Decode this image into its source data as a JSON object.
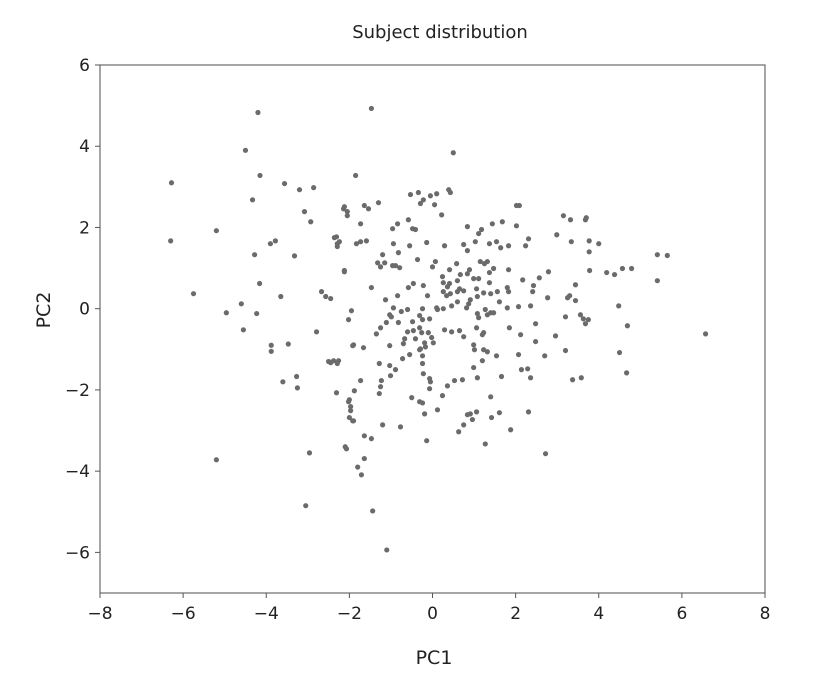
{
  "chart_data": {
    "type": "scatter",
    "title": "Subject distribution",
    "xlabel": "PC1",
    "ylabel": "PC2",
    "xlim": [
      -8,
      8
    ],
    "ylim": [
      -7,
      6
    ],
    "xticks": [
      -8,
      -6,
      -4,
      -2,
      0,
      2,
      4,
      6,
      8
    ],
    "yticks": [
      -6,
      -4,
      -2,
      0,
      2,
      4,
      6
    ],
    "xtick_labels": [
      "−8",
      "−6",
      "−4",
      "−2",
      "0",
      "2",
      "4",
      "6",
      "8"
    ],
    "ytick_labels": [
      "−6",
      "−4",
      "−2",
      "0",
      "2",
      "4",
      "6"
    ],
    "grid": false,
    "point_color": "#6b6b6b",
    "points": [
      [
        -6.28,
        3.1
      ],
      [
        -6.3,
        1.67
      ],
      [
        -5.75,
        0.37
      ],
      [
        -5.2,
        1.92
      ],
      [
        -5.2,
        -3.72
      ],
      [
        -4.96,
        -0.1
      ],
      [
        -4.5,
        3.9
      ],
      [
        -4.2,
        4.83
      ],
      [
        -4.15,
        3.28
      ],
      [
        -4.33,
        2.68
      ],
      [
        -4.28,
        1.33
      ],
      [
        -4.16,
        0.62
      ],
      [
        -4.23,
        -0.12
      ],
      [
        -4.55,
        -0.52
      ],
      [
        -4.6,
        0.12
      ],
      [
        -3.9,
        1.6
      ],
      [
        -3.78,
        1.67
      ],
      [
        -3.56,
        3.08
      ],
      [
        -3.65,
        0.3
      ],
      [
        -3.88,
        -0.9
      ],
      [
        -3.88,
        -1.05
      ],
      [
        -3.6,
        -1.8
      ],
      [
        -3.47,
        -0.87
      ],
      [
        -3.32,
        1.3
      ],
      [
        -3.27,
        -1.67
      ],
      [
        -3.25,
        -1.95
      ],
      [
        -3.2,
        2.93
      ],
      [
        -3.08,
        2.39
      ],
      [
        -3.05,
        -4.85
      ],
      [
        -2.96,
        -3.55
      ],
      [
        -2.93,
        2.14
      ],
      [
        -2.86,
        2.98
      ],
      [
        -2.79,
        -0.57
      ],
      [
        -2.67,
        0.42
      ],
      [
        -2.57,
        0.3
      ],
      [
        -2.5,
        -1.3
      ],
      [
        -2.38,
        -1.28
      ],
      [
        -2.36,
        1.75
      ],
      [
        -2.29,
        1.6
      ],
      [
        -2.12,
        0.94
      ],
      [
        -2.14,
        2.46
      ],
      [
        -2.05,
        2.29
      ],
      [
        -2.29,
        -1.35
      ],
      [
        -2.1,
        -3.4
      ],
      [
        -1.92,
        -0.91
      ],
      [
        -2.02,
        -2.29
      ],
      [
        -1.97,
        -2.51
      ],
      [
        -1.92,
        -2.76
      ],
      [
        -1.85,
        3.28
      ],
      [
        -1.8,
        -3.9
      ],
      [
        -1.71,
        -4.09
      ],
      [
        -1.64,
        2.54
      ],
      [
        -1.47,
        4.93
      ],
      [
        -1.44,
        -4.98
      ],
      [
        -1.1,
        -5.94
      ],
      [
        -0.53,
        2.81
      ],
      [
        -0.34,
        2.86
      ],
      [
        -0.29,
        2.59
      ],
      [
        -0.22,
        2.68
      ],
      [
        0.05,
        2.56
      ],
      [
        0.43,
        2.86
      ],
      [
        0.22,
        2.31
      ],
      [
        2.09,
        2.54
      ],
      [
        3.15,
        2.29
      ],
      [
        3.32,
        2.19
      ],
      [
        3.68,
        2.19
      ],
      [
        -2.12,
        2.51
      ],
      [
        -2.05,
        2.39
      ],
      [
        -1.54,
        2.46
      ],
      [
        -1.3,
        2.61
      ],
      [
        -1.73,
        2.09
      ],
      [
        -0.96,
        1.97
      ],
      [
        -0.84,
        2.09
      ],
      [
        -0.58,
        2.19
      ],
      [
        -0.48,
        1.97
      ],
      [
        -0.41,
        1.95
      ],
      [
        0.84,
        2.02
      ],
      [
        1.11,
        1.85
      ],
      [
        1.18,
        1.95
      ],
      [
        1.44,
        2.09
      ],
      [
        1.68,
        2.14
      ],
      [
        2.02,
        2.04
      ],
      [
        2.99,
        1.82
      ],
      [
        3.34,
        1.65
      ],
      [
        3.77,
        1.67
      ],
      [
        3.77,
        1.4
      ],
      [
        2.31,
        1.72
      ],
      [
        2.24,
        1.55
      ],
      [
        1.83,
        1.55
      ],
      [
        1.64,
        1.5
      ],
      [
        1.54,
        1.65
      ],
      [
        1.37,
        1.6
      ],
      [
        1.03,
        1.65
      ],
      [
        0.84,
        1.43
      ],
      [
        0.75,
        1.58
      ],
      [
        0.29,
        1.55
      ],
      [
        -0.14,
        1.63
      ],
      [
        -0.55,
        1.55
      ],
      [
        -0.94,
        1.6
      ],
      [
        -0.82,
        1.38
      ],
      [
        -0.36,
        1.21
      ],
      [
        0,
        1.03
      ],
      [
        0.07,
        1.16
      ],
      [
        -2.31,
        1.77
      ],
      [
        -2.24,
        1.65
      ],
      [
        -2.29,
        1.53
      ],
      [
        -1.83,
        1.6
      ],
      [
        -1.73,
        1.65
      ],
      [
        -1.59,
        1.67
      ],
      [
        -1.2,
        1.33
      ],
      [
        -1.32,
        1.13
      ],
      [
        -1.25,
        1.03
      ],
      [
        -1.15,
        1.13
      ],
      [
        -0.96,
        1.06
      ],
      [
        -0.89,
        1.06
      ],
      [
        -0.79,
        1.01
      ],
      [
        -2.12,
        0.91
      ],
      [
        -1.47,
        0.52
      ],
      [
        0.41,
        0.96
      ],
      [
        0.58,
        1.11
      ],
      [
        1.15,
        1.16
      ],
      [
        1.25,
        1.11
      ],
      [
        1.32,
        1.16
      ],
      [
        1.47,
        0.99
      ],
      [
        1.37,
        0.89
      ],
      [
        1.83,
        0.96
      ],
      [
        2.79,
        0.91
      ],
      [
        2.57,
        0.76
      ],
      [
        2.17,
        0.71
      ],
      [
        2.43,
        0.57
      ],
      [
        2.41,
        0.42
      ],
      [
        1.8,
        0.52
      ],
      [
        1.83,
        0.42
      ],
      [
        1.56,
        0.42
      ],
      [
        1.37,
        0.64
      ],
      [
        1.4,
        0.37
      ],
      [
        1.23,
        0.39
      ],
      [
        1.06,
        0.49
      ],
      [
        1.08,
        0.3
      ],
      [
        0.99,
        0.74
      ],
      [
        1.11,
        0.74
      ],
      [
        0.89,
        0.96
      ],
      [
        0.84,
        0.86
      ],
      [
        0.67,
        0.84
      ],
      [
        0.6,
        0.69
      ],
      [
        0.41,
        0.62
      ],
      [
        0.24,
        0.79
      ],
      [
        0.26,
        0.64
      ],
      [
        0.36,
        0.54
      ],
      [
        0.26,
        0.42
      ],
      [
        0.34,
        0.32
      ],
      [
        0.43,
        0.37
      ],
      [
        0.6,
        0.42
      ],
      [
        0.75,
        0.44
      ],
      [
        0.65,
        0.49
      ],
      [
        0.91,
        0.22
      ],
      [
        0.82,
        0.02
      ],
      [
        0.87,
        0.12
      ],
      [
        0.6,
        0.17
      ],
      [
        0.46,
        0.07
      ],
      [
        0.26,
        0
      ],
      [
        0.1,
        0.02
      ],
      [
        0.12,
        -0.02
      ],
      [
        -0.12,
        0.32
      ],
      [
        -0.22,
        0.57
      ],
      [
        -0.46,
        0.62
      ],
      [
        -0.58,
        0.52
      ],
      [
        -0.84,
        0.32
      ],
      [
        -1.13,
        0.22
      ],
      [
        -0.94,
        0.02
      ],
      [
        -0.6,
        -0.02
      ],
      [
        -0.75,
        -0.07
      ],
      [
        -1.03,
        -0.15
      ],
      [
        -0.99,
        -0.2
      ],
      [
        -1.11,
        -0.34
      ],
      [
        -1.25,
        -0.47
      ],
      [
        -1.35,
        -0.62
      ],
      [
        -0.82,
        -0.34
      ],
      [
        -0.48,
        -0.32
      ],
      [
        -0.31,
        -0.17
      ],
      [
        -0.24,
        0
      ],
      [
        -0.07,
        -0.25
      ],
      [
        -0.24,
        -0.27
      ],
      [
        -0.31,
        -0.47
      ],
      [
        -0.46,
        -0.54
      ],
      [
        -0.6,
        -0.57
      ],
      [
        -0.67,
        -0.74
      ],
      [
        -0.7,
        -0.86
      ],
      [
        -0.41,
        -0.74
      ],
      [
        -0.26,
        -0.59
      ],
      [
        -0.1,
        -0.59
      ],
      [
        -0.02,
        -0.71
      ],
      [
        0.02,
        -0.84
      ],
      [
        -0.19,
        -0.84
      ],
      [
        -0.17,
        -0.94
      ],
      [
        -0.29,
        -0.99
      ],
      [
        -1.03,
        -0.91
      ],
      [
        -1.66,
        -0.96
      ],
      [
        -1.9,
        -0.89
      ],
      [
        -1.95,
        -0.05
      ],
      [
        -2.02,
        -0.27
      ],
      [
        -2.45,
        0.25
      ],
      [
        0.29,
        -0.52
      ],
      [
        0.46,
        -0.57
      ],
      [
        0.65,
        -0.54
      ],
      [
        0.75,
        -0.69
      ],
      [
        1.06,
        -0.47
      ],
      [
        1.23,
        -0.59
      ],
      [
        1.2,
        -0.64
      ],
      [
        1.85,
        -0.47
      ],
      [
        2.12,
        -0.64
      ],
      [
        2.48,
        -0.37
      ],
      [
        2.48,
        -0.81
      ],
      [
        2.77,
        0.27
      ],
      [
        3.2,
        -0.2
      ],
      [
        3.25,
        0.27
      ],
      [
        3.3,
        0.32
      ],
      [
        3.44,
        0.59
      ],
      [
        3.56,
        -0.15
      ],
      [
        3.68,
        -0.37
      ],
      [
        3.75,
        -0.27
      ],
      [
        2.96,
        -0.67
      ],
      [
        3.2,
        -1.03
      ],
      [
        2.7,
        -1.16
      ],
      [
        2.07,
        -1.13
      ],
      [
        2.36,
        0.07
      ],
      [
        2.07,
        0.05
      ],
      [
        1.8,
        0.02
      ],
      [
        1.61,
        0.17
      ],
      [
        1.27,
        -0.02
      ],
      [
        1.4,
        -0.1
      ],
      [
        1.47,
        -0.1
      ],
      [
        1.32,
        -0.15
      ],
      [
        1.08,
        -0.12
      ],
      [
        1.11,
        -0.22
      ],
      [
        0.99,
        -0.89
      ],
      [
        1.01,
        -1.01
      ],
      [
        1.23,
        -1.01
      ],
      [
        1.32,
        -1.06
      ],
      [
        1.54,
        -1.16
      ],
      [
        1.2,
        -1.28
      ],
      [
        0.99,
        -1.45
      ],
      [
        1.08,
        -1.7
      ],
      [
        1.66,
        -1.67
      ],
      [
        2.14,
        -1.5
      ],
      [
        2.29,
        -1.48
      ],
      [
        2.36,
        -1.7
      ],
      [
        3.37,
        -1.75
      ],
      [
        3.58,
        -1.7
      ],
      [
        2.31,
        -2.54
      ],
      [
        1.88,
        -2.98
      ],
      [
        1.61,
        -2.56
      ],
      [
        1.42,
        -2.68
      ],
      [
        1.4,
        -2.17
      ],
      [
        1.27,
        -3.33
      ],
      [
        1.06,
        -2.54
      ],
      [
        0.96,
        -2.73
      ],
      [
        0.84,
        -2.61
      ],
      [
        0.91,
        -2.59
      ],
      [
        0.75,
        -2.86
      ],
      [
        0.63,
        -3.03
      ],
      [
        2.72,
        -3.57
      ],
      [
        0.72,
        -1.75
      ],
      [
        0.53,
        -1.77
      ],
      [
        0.36,
        -1.9
      ],
      [
        0.24,
        -2.14
      ],
      [
        0.12,
        -2.49
      ],
      [
        -0.07,
        -1.97
      ],
      [
        -0.05,
        -1.8
      ],
      [
        -0.07,
        -1.72
      ],
      [
        -0.22,
        -1.6
      ],
      [
        -0.24,
        -1.35
      ],
      [
        -0.24,
        -1.16
      ],
      [
        -0.31,
        -1.01
      ],
      [
        -0.55,
        -1.13
      ],
      [
        -0.72,
        -1.23
      ],
      [
        -0.89,
        -1.5
      ],
      [
        -1.03,
        -1.4
      ],
      [
        -1.01,
        -1.65
      ],
      [
        -1.28,
        -1.35
      ],
      [
        -1.23,
        -1.77
      ],
      [
        -1.73,
        -1.77
      ],
      [
        -1.88,
        -2.02
      ],
      [
        -2.31,
        -2.07
      ],
      [
        -1.25,
        -1.92
      ],
      [
        -1.28,
        -2.09
      ],
      [
        -2,
        -2.24
      ],
      [
        -1.97,
        -2.41
      ],
      [
        -2,
        -2.68
      ],
      [
        -1.9,
        -2.76
      ],
      [
        -0.5,
        -2.19
      ],
      [
        -0.31,
        -2.29
      ],
      [
        -0.24,
        -2.32
      ],
      [
        -0.19,
        -2.59
      ],
      [
        -1.2,
        -2.86
      ],
      [
        -0.77,
        -2.91
      ],
      [
        -1.64,
        -3.13
      ],
      [
        -1.47,
        -3.2
      ],
      [
        -2.07,
        -3.45
      ],
      [
        -0.14,
        -3.25
      ],
      [
        -1.64,
        -3.69
      ],
      [
        -2.26,
        -1.28
      ],
      [
        -2.45,
        -1.33
      ],
      [
        4.19,
        0.89
      ],
      [
        4.38,
        0.84
      ],
      [
        4.57,
        0.99
      ],
      [
        4.79,
        0.99
      ],
      [
        5.41,
        1.33
      ],
      [
        5.65,
        1.31
      ],
      [
        5.41,
        0.69
      ],
      [
        6.57,
        -0.62
      ],
      [
        4.48,
        0.07
      ],
      [
        4.69,
        -0.42
      ],
      [
        4.5,
        -1.08
      ],
      [
        4.67,
        -1.58
      ],
      [
        3.44,
        0.2
      ],
      [
        3.63,
        -0.25
      ],
      [
        3.78,
        0.94
      ],
      [
        0.5,
        3.84
      ],
      [
        0.39,
        2.93
      ],
      [
        0.1,
        2.83
      ],
      [
        -0.05,
        2.78
      ],
      [
        2.02,
        2.54
      ],
      [
        4.0,
        1.6
      ],
      [
        3.7,
        2.24
      ]
    ]
  }
}
